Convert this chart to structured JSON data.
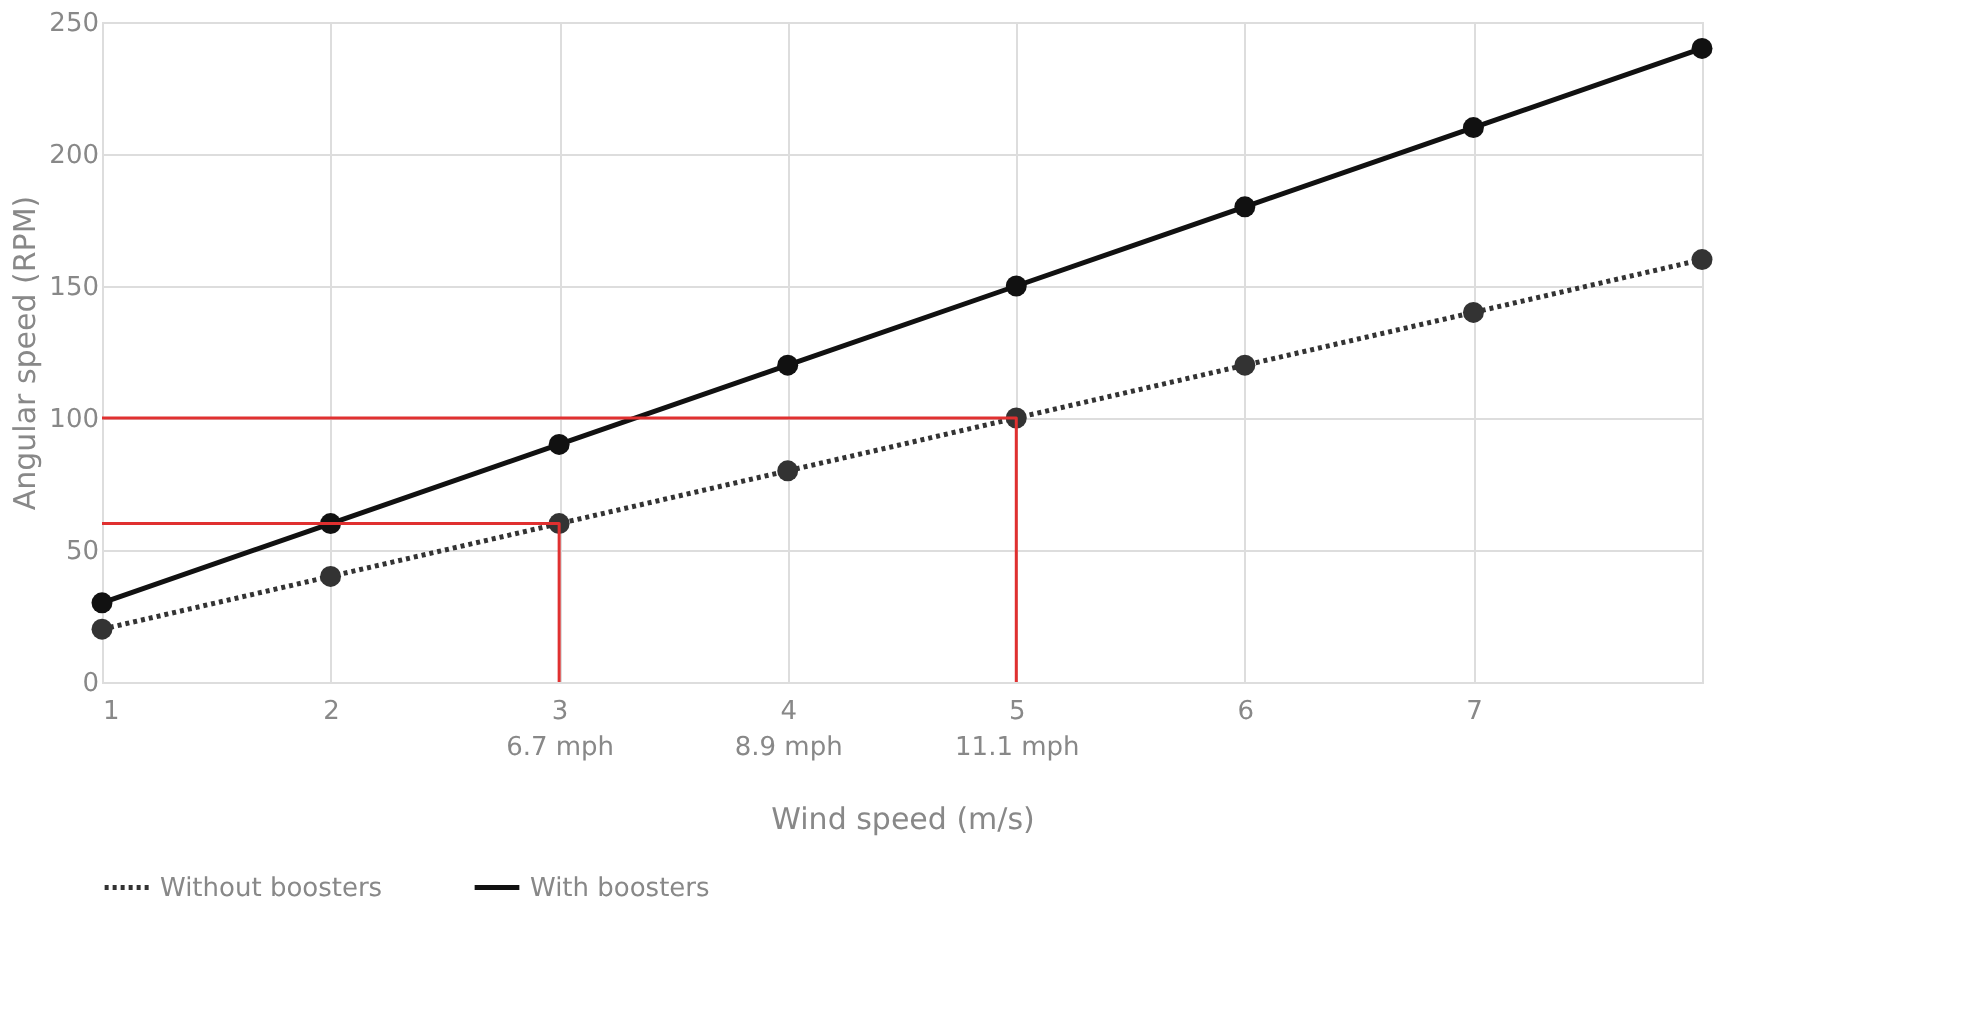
{
  "chart_data": {
    "type": "line",
    "xlabel": "Wind speed (m/s)",
    "ylabel": "Angular speed (RPM)",
    "x": [
      1,
      2,
      3,
      4,
      5,
      6,
      7,
      8
    ],
    "series": [
      {
        "name": "Without boosters",
        "color": "#333333",
        "values": [
          20,
          40,
          60,
          80,
          100,
          120,
          140,
          160
        ],
        "line_style": "dotted",
        "marker": "circle"
      },
      {
        "name": "With boosters",
        "color": "#111111",
        "values": [
          30,
          60,
          90,
          120,
          150,
          180,
          210,
          240
        ],
        "line_style": "solid",
        "marker": "circle"
      },
      {
        "color": "#e03030",
        "x": [
          1,
          3,
          3
        ],
        "values": [
          60,
          60,
          0
        ],
        "line_style": "solid",
        "marker": "none"
      },
      {
        "color": "#e03030",
        "x": [
          1,
          5,
          5
        ],
        "values": [
          100,
          100,
          0
        ],
        "line_style": "solid",
        "marker": "none"
      }
    ],
    "xlim": [
      1,
      8
    ],
    "xticks": [
      1,
      2,
      {
        "value": 3,
        "label": "3\n6.7 mph"
      },
      {
        "value": 4,
        "label": "4\n8.9 mph"
      },
      {
        "value": 5,
        "label": "5\n11.1 mph"
      },
      6,
      7
    ],
    "ylim": [
      0,
      250
    ],
    "yticks": [
      0,
      50,
      100,
      150,
      200,
      250
    ],
    "grid": true,
    "legend": "bottom"
  }
}
